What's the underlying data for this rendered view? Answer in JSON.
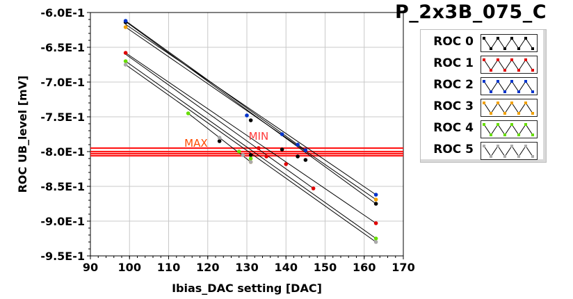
{
  "title": "P_2x3B_075_C",
  "legend": [
    {
      "label": "ROC 0",
      "color": "#000000"
    },
    {
      "label": "ROC 1",
      "color": "#e00000"
    },
    {
      "label": "ROC 2",
      "color": "#0033cc"
    },
    {
      "label": "ROC 3",
      "color": "#f0a000"
    },
    {
      "label": "ROC 4",
      "color": "#66dd00"
    },
    {
      "label": "ROC 5",
      "color": "#aaaaaa"
    }
  ],
  "chart_data": {
    "type": "scatter",
    "xlabel": "Ibias_DAC setting [DAC]",
    "ylabel": "ROC UB_level [mV]",
    "xlim": [
      90,
      170
    ],
    "ylim": [
      -0.95,
      -0.6
    ],
    "xticks": [
      "90",
      "100",
      "110",
      "120",
      "130",
      "140",
      "150",
      "160",
      "170"
    ],
    "yticks": [
      "-6.0E-1",
      "-6.5E-1",
      "-7.0E-1",
      "-7.5E-1",
      "-8.0E-1",
      "-8.5E-1",
      "-9.0E-1",
      "-9.5E-1"
    ],
    "grid": true,
    "series": [
      {
        "name": "ROC 0",
        "color": "#000000",
        "points": [
          [
            99,
            -0.614
          ],
          [
            131,
            -0.755
          ],
          [
            143,
            -0.807
          ],
          [
            163,
            -0.875
          ],
          [
            145,
            -0.812
          ],
          [
            131,
            -0.805
          ],
          [
            123,
            -0.785
          ],
          [
            139,
            -0.797
          ]
        ]
      },
      {
        "name": "ROC 1",
        "color": "#e00000",
        "points": [
          [
            99,
            -0.658
          ],
          [
            133,
            -0.795
          ],
          [
            135,
            -0.807
          ],
          [
            140,
            -0.818
          ],
          [
            147,
            -0.853
          ],
          [
            163,
            -0.903
          ]
        ]
      },
      {
        "name": "ROC 2",
        "color": "#0033cc",
        "points": [
          [
            99,
            -0.612
          ],
          [
            130,
            -0.748
          ],
          [
            139,
            -0.775
          ],
          [
            143,
            -0.79
          ],
          [
            145,
            -0.798
          ],
          [
            163,
            -0.862
          ]
        ]
      },
      {
        "name": "ROC 3",
        "color": "#f0a000",
        "points": [
          [
            99,
            -0.621
          ],
          [
            131,
            -0.815
          ],
          [
            163,
            -0.869
          ]
        ]
      },
      {
        "name": "ROC 4",
        "color": "#66dd00",
        "points": [
          [
            99,
            -0.67
          ],
          [
            115,
            -0.745
          ],
          [
            128,
            -0.8
          ],
          [
            131,
            -0.81
          ],
          [
            163,
            -0.925
          ]
        ]
      },
      {
        "name": "ROC 5",
        "color": "#aaaaaa",
        "points": [
          [
            99,
            -0.675
          ],
          [
            123,
            -0.78
          ],
          [
            129,
            -0.805
          ],
          [
            131,
            -0.815
          ],
          [
            163,
            -0.93
          ]
        ]
      }
    ],
    "fit_lines": [
      [
        [
          99,
          -0.613
        ],
        [
          163,
          -0.875
        ]
      ],
      [
        [
          99,
          -0.617
        ],
        [
          163,
          -0.862
        ]
      ],
      [
        [
          99,
          -0.621
        ],
        [
          163,
          -0.869
        ]
      ],
      [
        [
          99,
          -0.612
        ],
        [
          145,
          -0.798
        ]
      ],
      [
        [
          99,
          -0.658
        ],
        [
          163,
          -0.903
        ]
      ],
      [
        [
          99,
          -0.67
        ],
        [
          163,
          -0.925
        ]
      ],
      [
        [
          99,
          -0.675
        ],
        [
          163,
          -0.93
        ]
      ],
      [
        [
          99,
          -0.66
        ],
        [
          147,
          -0.853
        ]
      ],
      [
        [
          115,
          -0.745
        ],
        [
          131,
          -0.815
        ]
      ]
    ],
    "ref_lines": [
      {
        "y": -0.795,
        "color": "#ff1a1a"
      },
      {
        "y": -0.8,
        "color": "#ff1a1a"
      },
      {
        "y": -0.803,
        "color": "#ff1a1a"
      },
      {
        "y": -0.806,
        "color": "#ff1a1a"
      }
    ],
    "annotations": [
      {
        "text": "MAX",
        "x": 117,
        "y": -0.793,
        "color": "#ff4a00"
      },
      {
        "text": "MIN",
        "x": 133,
        "y": -0.783,
        "color": "#ff3a3a"
      }
    ]
  }
}
